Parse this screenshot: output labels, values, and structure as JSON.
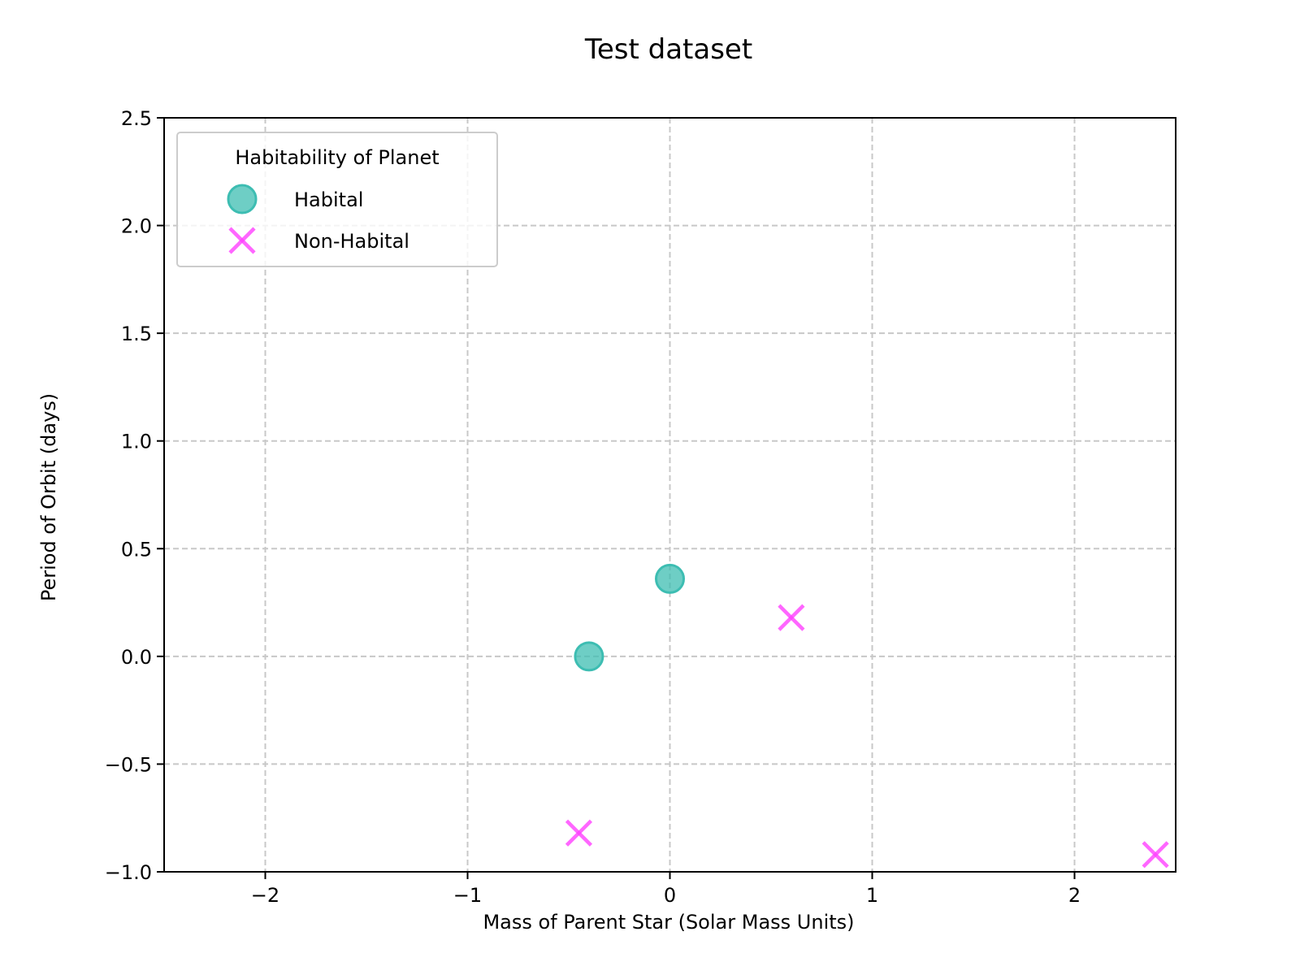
{
  "chart_data": {
    "type": "scatter",
    "title": "Test dataset",
    "xlabel": "Mass of Parent Star (Solar Mass Units)",
    "ylabel": "Period of Orbit (days)",
    "xlim": [
      -2.5,
      2.5
    ],
    "ylim": [
      -1.0,
      2.5
    ],
    "xticks": [
      -2,
      -1,
      0,
      1,
      2
    ],
    "xtick_labels": [
      "−2",
      "−1",
      "0",
      "1",
      "2"
    ],
    "yticks": [
      -1.0,
      -0.5,
      0.0,
      0.5,
      1.0,
      1.5,
      2.0,
      2.5
    ],
    "ytick_labels": [
      "−1.0",
      "−0.5",
      "0.0",
      "0.5",
      "1.0",
      "1.5",
      "2.0",
      "2.5"
    ],
    "grid": true,
    "legend": {
      "title": "Habitability of Planet",
      "placement": "top-left"
    },
    "series": [
      {
        "name": "Habital",
        "marker": "circle",
        "color": "#3dbdb2",
        "points": [
          {
            "x": 0.0,
            "y": 0.36
          },
          {
            "x": -0.4,
            "y": 0.0
          }
        ]
      },
      {
        "name": "Non-Habital",
        "marker": "x",
        "color": "#ff40ff",
        "points": [
          {
            "x": 0.6,
            "y": 0.18
          },
          {
            "x": -0.45,
            "y": -0.82
          },
          {
            "x": 2.4,
            "y": -0.92
          }
        ]
      }
    ]
  }
}
